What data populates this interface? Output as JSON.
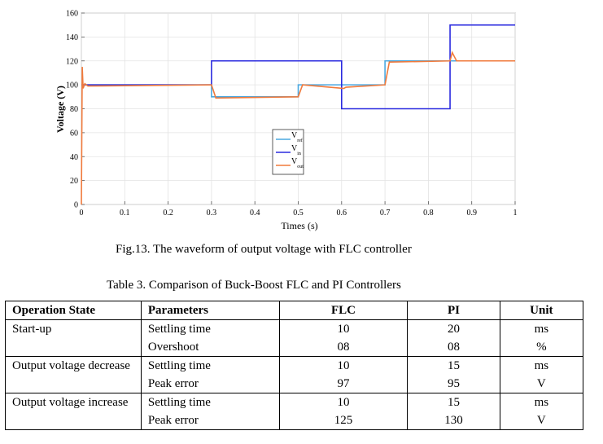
{
  "chart_data": {
    "type": "line",
    "title": "",
    "xlabel": "Times (s)",
    "ylabel": "Voltage (V)",
    "xlim": [
      0,
      1
    ],
    "ylim": [
      0,
      160
    ],
    "xticks": [
      "0",
      "0.1",
      "0.2",
      "0.3",
      "0.4",
      "0.5",
      "0.6",
      "0.7",
      "0.8",
      "0.9",
      "1"
    ],
    "yticks": [
      "0",
      "20",
      "40",
      "60",
      "80",
      "100",
      "120",
      "140",
      "160"
    ],
    "legend": {
      "position": "center",
      "labels": [
        {
          "main": "V",
          "sub": "ref"
        },
        {
          "main": "V",
          "sub": "in"
        },
        {
          "main": "V",
          "sub": "out"
        }
      ]
    },
    "series": [
      {
        "name": "V_ref",
        "color": "#4aa8e0",
        "x": [
          0,
          0.3,
          0.3,
          0.5,
          0.5,
          0.7,
          0.7,
          0.85,
          0.85,
          1
        ],
        "y": [
          100,
          100,
          90,
          90,
          100,
          100,
          120,
          120,
          120,
          120
        ]
      },
      {
        "name": "V_in",
        "color": "#2b2bdf",
        "x": [
          0,
          0.3,
          0.3,
          0.6,
          0.6,
          0.85,
          0.85,
          1
        ],
        "y": [
          100,
          100,
          120,
          120,
          80,
          80,
          150,
          150
        ]
      },
      {
        "name": "V_out",
        "color": "#f07a3c",
        "x": [
          0,
          0.002,
          0.004,
          0.008,
          0.015,
          0.3,
          0.31,
          0.5,
          0.51,
          0.605,
          0.61,
          0.7,
          0.71,
          0.85,
          0.855,
          0.865,
          1
        ],
        "y": [
          0,
          115,
          97,
          101,
          99,
          100,
          89,
          90,
          100,
          97,
          98,
          100,
          119,
          120,
          127,
          120,
          120
        ]
      }
    ]
  },
  "fig_caption": "Fig.13. The waveform of output voltage with FLC controller",
  "table_caption": "Table 3. Comparison of Buck-Boost  FLC and PI Controllers",
  "table": {
    "headers": [
      "Operation State",
      "Parameters",
      "FLC",
      "PI",
      "Unit"
    ],
    "rows": [
      [
        "Start-up",
        "Settling time",
        "10",
        "20",
        "ms"
      ],
      [
        "",
        "Overshoot",
        "08",
        "08",
        "%"
      ],
      [
        "Output voltage decrease",
        "Settling time",
        "10",
        "15",
        "ms"
      ],
      [
        "",
        "Peak error",
        "97",
        "95",
        "V"
      ],
      [
        "Output voltage increase",
        "Settling time",
        "10",
        "15",
        "ms"
      ],
      [
        "",
        "Peak error",
        "125",
        "130",
        "V"
      ]
    ]
  }
}
